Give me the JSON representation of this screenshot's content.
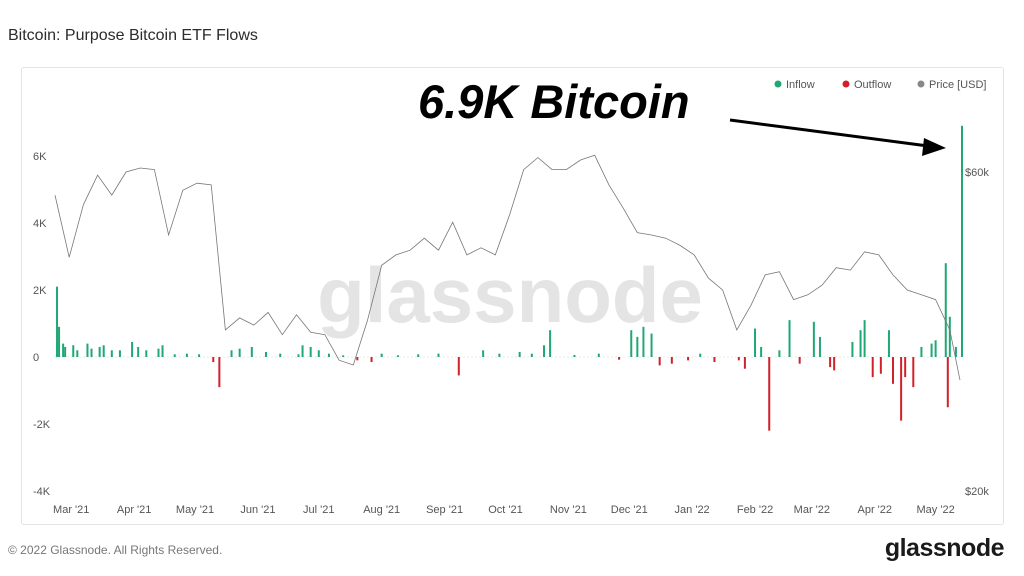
{
  "header": {
    "title": "Bitcoin: Purpose Bitcoin ETF Flows"
  },
  "footer": {
    "copyright": "© 2022 Glassnode. All Rights Reserved.",
    "logo": "glassnode"
  },
  "watermark": "glassnode",
  "annotation": {
    "text": "6.9K Bitcoin"
  },
  "chart_data": {
    "type": "bar",
    "title": "Bitcoin: Purpose Bitcoin ETF Flows",
    "legend": {
      "placement": "top-right",
      "items": [
        {
          "name": "Inflow",
          "color": "#1fa774"
        },
        {
          "name": "Outflow",
          "color": "#d0202a"
        },
        {
          "name": "Price [USD]",
          "color": "#888888"
        }
      ]
    },
    "xlim": [
      "2021-02-21",
      "2022-05-14"
    ],
    "x_ticks": [
      {
        "date": "2021-03-01",
        "label": "Mar '21"
      },
      {
        "date": "2021-04-01",
        "label": "Apr '21"
      },
      {
        "date": "2021-05-01",
        "label": "May '21"
      },
      {
        "date": "2021-06-01",
        "label": "Jun '21"
      },
      {
        "date": "2021-07-01",
        "label": "Jul '21"
      },
      {
        "date": "2021-08-01",
        "label": "Aug '21"
      },
      {
        "date": "2021-09-01",
        "label": "Sep '21"
      },
      {
        "date": "2021-10-01",
        "label": "Oct '21"
      },
      {
        "date": "2021-11-01",
        "label": "Nov '21"
      },
      {
        "date": "2021-12-01",
        "label": "Dec '21"
      },
      {
        "date": "2022-01-01",
        "label": "Jan '22"
      },
      {
        "date": "2022-02-01",
        "label": "Feb '22"
      },
      {
        "date": "2022-03-01",
        "label": "Mar '22"
      },
      {
        "date": "2022-04-01",
        "label": "Apr '22"
      },
      {
        "date": "2022-05-01",
        "label": "May '22"
      }
    ],
    "y_left": {
      "ylim": [
        -4000,
        6000
      ],
      "ticks": [
        {
          "v": 6000,
          "label": "6K"
        },
        {
          "v": 4000,
          "label": "4K"
        },
        {
          "v": 2000,
          "label": "2K"
        },
        {
          "v": 0,
          "label": "0"
        },
        {
          "v": -2000,
          "label": "-2K"
        },
        {
          "v": -4000,
          "label": "-4K"
        }
      ]
    },
    "y_right": {
      "ylim": [
        20000,
        60000
      ],
      "ticks": [
        {
          "v": 60000,
          "label": "$60k"
        },
        {
          "v": 20000,
          "label": "$20k"
        }
      ]
    },
    "grid": false,
    "flows": [
      [
        "2021-02-22",
        2100
      ],
      [
        "2021-02-23",
        900
      ],
      [
        "2021-02-25",
        400
      ],
      [
        "2021-02-26",
        300
      ],
      [
        "2021-03-02",
        350
      ],
      [
        "2021-03-04",
        200
      ],
      [
        "2021-03-09",
        400
      ],
      [
        "2021-03-11",
        250
      ],
      [
        "2021-03-15",
        300
      ],
      [
        "2021-03-17",
        350
      ],
      [
        "2021-03-21",
        200
      ],
      [
        "2021-03-25",
        200
      ],
      [
        "2021-03-31",
        450
      ],
      [
        "2021-04-03",
        300
      ],
      [
        "2021-04-07",
        200
      ],
      [
        "2021-04-13",
        250
      ],
      [
        "2021-04-15",
        350
      ],
      [
        "2021-04-21",
        80
      ],
      [
        "2021-04-27",
        100
      ],
      [
        "2021-05-03",
        80
      ],
      [
        "2021-05-10",
        -150
      ],
      [
        "2021-05-13",
        -900
      ],
      [
        "2021-05-19",
        200
      ],
      [
        "2021-05-23",
        250
      ],
      [
        "2021-05-29",
        300
      ],
      [
        "2021-06-05",
        150
      ],
      [
        "2021-06-12",
        100
      ],
      [
        "2021-06-21",
        80
      ],
      [
        "2021-06-23",
        350
      ],
      [
        "2021-06-27",
        300
      ],
      [
        "2021-07-01",
        200
      ],
      [
        "2021-07-06",
        100
      ],
      [
        "2021-07-13",
        50
      ],
      [
        "2021-07-20",
        -100
      ],
      [
        "2021-07-27",
        -150
      ],
      [
        "2021-08-01",
        100
      ],
      [
        "2021-08-09",
        50
      ],
      [
        "2021-08-19",
        80
      ],
      [
        "2021-08-29",
        100
      ],
      [
        "2021-09-08",
        -550
      ],
      [
        "2021-09-20",
        200
      ],
      [
        "2021-09-28",
        100
      ],
      [
        "2021-10-08",
        150
      ],
      [
        "2021-10-14",
        100
      ],
      [
        "2021-10-20",
        350
      ],
      [
        "2021-10-23",
        800
      ],
      [
        "2021-11-04",
        60
      ],
      [
        "2021-11-16",
        100
      ],
      [
        "2021-11-26",
        -80
      ],
      [
        "2021-12-02",
        800
      ],
      [
        "2021-12-05",
        600
      ],
      [
        "2021-12-08",
        900
      ],
      [
        "2021-12-12",
        700
      ],
      [
        "2021-12-16",
        -250
      ],
      [
        "2021-12-22",
        -200
      ],
      [
        "2021-12-30",
        -100
      ],
      [
        "2022-01-05",
        100
      ],
      [
        "2022-01-12",
        -150
      ],
      [
        "2022-01-24",
        -100
      ],
      [
        "2022-01-27",
        -350
      ],
      [
        "2022-02-01",
        850
      ],
      [
        "2022-02-04",
        300
      ],
      [
        "2022-02-08",
        -2200
      ],
      [
        "2022-02-13",
        200
      ],
      [
        "2022-02-18",
        1100
      ],
      [
        "2022-02-23",
        -200
      ],
      [
        "2022-03-02",
        1050
      ],
      [
        "2022-03-05",
        600
      ],
      [
        "2022-03-10",
        -300
      ],
      [
        "2022-03-12",
        -400
      ],
      [
        "2022-03-21",
        450
      ],
      [
        "2022-03-25",
        800
      ],
      [
        "2022-03-27",
        1100
      ],
      [
        "2022-03-31",
        -600
      ],
      [
        "2022-04-04",
        -500
      ],
      [
        "2022-04-08",
        800
      ],
      [
        "2022-04-10",
        -800
      ],
      [
        "2022-04-14",
        -1900
      ],
      [
        "2022-04-16",
        -600
      ],
      [
        "2022-04-20",
        -900
      ],
      [
        "2022-04-24",
        300
      ],
      [
        "2022-04-29",
        400
      ],
      [
        "2022-05-01",
        500
      ],
      [
        "2022-05-06",
        2800
      ],
      [
        "2022-05-07",
        -1500
      ],
      [
        "2022-05-08",
        1200
      ],
      [
        "2022-05-11",
        300
      ],
      [
        "2022-05-14",
        6900
      ]
    ],
    "price": [
      [
        "2021-02-21",
        57100
      ],
      [
        "2021-02-28",
        49300
      ],
      [
        "2021-03-07",
        55900
      ],
      [
        "2021-03-14",
        59600
      ],
      [
        "2021-03-21",
        57100
      ],
      [
        "2021-03-28",
        60000
      ],
      [
        "2021-04-04",
        60500
      ],
      [
        "2021-04-11",
        60300
      ],
      [
        "2021-04-18",
        52100
      ],
      [
        "2021-04-25",
        57700
      ],
      [
        "2021-05-02",
        58600
      ],
      [
        "2021-05-09",
        58400
      ],
      [
        "2021-05-16",
        40200
      ],
      [
        "2021-05-23",
        41700
      ],
      [
        "2021-05-30",
        40800
      ],
      [
        "2021-06-06",
        42400
      ],
      [
        "2021-06-13",
        39600
      ],
      [
        "2021-06-20",
        42100
      ],
      [
        "2021-06-27",
        39900
      ],
      [
        "2021-07-04",
        39600
      ],
      [
        "2021-07-11",
        36400
      ],
      [
        "2021-07-18",
        35800
      ],
      [
        "2021-07-25",
        41400
      ],
      [
        "2021-08-01",
        48300
      ],
      [
        "2021-08-08",
        49600
      ],
      [
        "2021-08-15",
        50200
      ],
      [
        "2021-08-22",
        51700
      ],
      [
        "2021-08-29",
        50200
      ],
      [
        "2021-09-05",
        53700
      ],
      [
        "2021-09-12",
        49600
      ],
      [
        "2021-09-19",
        50500
      ],
      [
        "2021-09-26",
        49600
      ],
      [
        "2021-10-03",
        54600
      ],
      [
        "2021-10-10",
        60300
      ],
      [
        "2021-10-17",
        61800
      ],
      [
        "2021-10-24",
        60300
      ],
      [
        "2021-10-31",
        60300
      ],
      [
        "2021-11-07",
        61500
      ],
      [
        "2021-11-14",
        62100
      ],
      [
        "2021-11-21",
        58400
      ],
      [
        "2021-11-28",
        55500
      ],
      [
        "2021-12-05",
        52400
      ],
      [
        "2021-12-12",
        52100
      ],
      [
        "2021-12-19",
        51700
      ],
      [
        "2021-12-26",
        50800
      ],
      [
        "2022-01-02",
        49600
      ],
      [
        "2022-01-09",
        46700
      ],
      [
        "2022-01-16",
        45200
      ],
      [
        "2022-01-23",
        40200
      ],
      [
        "2022-01-30",
        43300
      ],
      [
        "2022-02-06",
        47100
      ],
      [
        "2022-02-13",
        47500
      ],
      [
        "2022-02-20",
        44000
      ],
      [
        "2022-02-27",
        44600
      ],
      [
        "2022-03-06",
        45800
      ],
      [
        "2022-03-13",
        48000
      ],
      [
        "2022-03-20",
        47700
      ],
      [
        "2022-03-27",
        50000
      ],
      [
        "2022-04-03",
        49600
      ],
      [
        "2022-04-10",
        47100
      ],
      [
        "2022-04-17",
        45200
      ],
      [
        "2022-04-24",
        44600
      ],
      [
        "2022-05-01",
        44000
      ],
      [
        "2022-05-08",
        40200
      ],
      [
        "2022-05-13",
        33900
      ]
    ]
  }
}
